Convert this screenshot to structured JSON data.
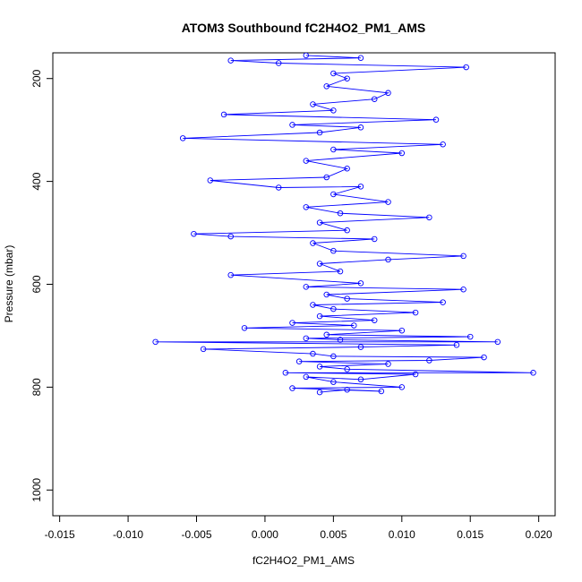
{
  "chart_data": {
    "type": "line",
    "title": "ATOM3 Southbound fC2H4O2_PM1_AMS",
    "xlabel": "fC2H4O2_PM1_AMS",
    "ylabel": "Pressure (mbar)",
    "xlim": [
      -0.0155,
      0.0212
    ],
    "ylim": [
      1050,
      150
    ],
    "y_reversed": true,
    "grid": false,
    "legend": "none",
    "x_ticks": [
      -0.015,
      -0.01,
      -0.005,
      0.0,
      0.005,
      0.01,
      0.015,
      0.02
    ],
    "x_tick_labels": [
      "-0.015",
      "-0.010",
      "-0.005",
      "0.000",
      "0.005",
      "0.010",
      "0.015",
      "0.020"
    ],
    "y_ticks": [
      200,
      400,
      600,
      800,
      1000
    ],
    "y_tick_labels": [
      "200",
      "400",
      "600",
      "800",
      "1000"
    ],
    "series": [
      {
        "color": "#0000ff",
        "marker": "open-circle",
        "points": [
          [
            0.004,
            810
          ],
          [
            0.006,
            805
          ],
          [
            0.0085,
            808
          ],
          [
            0.002,
            802
          ],
          [
            0.01,
            800
          ],
          [
            0.005,
            790
          ],
          [
            0.003,
            780
          ],
          [
            0.007,
            785
          ],
          [
            0.011,
            775
          ],
          [
            0.0015,
            772
          ],
          [
            0.0196,
            772
          ],
          [
            0.006,
            765
          ],
          [
            0.004,
            760
          ],
          [
            0.009,
            755
          ],
          [
            0.0025,
            750
          ],
          [
            0.012,
            748
          ],
          [
            0.016,
            742
          ],
          [
            0.005,
            740
          ],
          [
            0.0035,
            735
          ],
          [
            -0.0045,
            726
          ],
          [
            0.007,
            722
          ],
          [
            0.014,
            718
          ],
          [
            -0.008,
            712
          ],
          [
            0.017,
            712
          ],
          [
            0.0055,
            708
          ],
          [
            0.003,
            705
          ],
          [
            0.015,
            702
          ],
          [
            0.0045,
            698
          ],
          [
            0.01,
            690
          ],
          [
            -0.0015,
            685
          ],
          [
            0.0065,
            680
          ],
          [
            0.002,
            675
          ],
          [
            0.008,
            670
          ],
          [
            0.004,
            662
          ],
          [
            0.011,
            655
          ],
          [
            0.005,
            648
          ],
          [
            0.0035,
            640
          ],
          [
            0.013,
            635
          ],
          [
            0.006,
            628
          ],
          [
            0.0045,
            620
          ],
          [
            0.0145,
            610
          ],
          [
            0.003,
            605
          ],
          [
            0.007,
            598
          ],
          [
            -0.0025,
            582
          ],
          [
            0.0055,
            575
          ],
          [
            0.004,
            560
          ],
          [
            0.009,
            552
          ],
          [
            0.0145,
            545
          ],
          [
            0.005,
            535
          ],
          [
            0.0035,
            520
          ],
          [
            0.008,
            512
          ],
          [
            -0.0025,
            507
          ],
          [
            -0.0052,
            502
          ],
          [
            0.006,
            495
          ],
          [
            0.004,
            480
          ],
          [
            0.012,
            470
          ],
          [
            0.0055,
            462
          ],
          [
            0.003,
            450
          ],
          [
            0.009,
            440
          ],
          [
            0.005,
            425
          ],
          [
            0.007,
            410
          ],
          [
            0.001,
            412
          ],
          [
            -0.004,
            398
          ],
          [
            0.0045,
            392
          ],
          [
            0.006,
            375
          ],
          [
            0.003,
            360
          ],
          [
            0.01,
            345
          ],
          [
            0.005,
            338
          ],
          [
            0.013,
            328
          ],
          [
            -0.006,
            316
          ],
          [
            0.004,
            305
          ],
          [
            0.007,
            295
          ],
          [
            0.002,
            290
          ],
          [
            0.0125,
            280
          ],
          [
            -0.003,
            270
          ],
          [
            0.005,
            262
          ],
          [
            0.0035,
            250
          ],
          [
            0.008,
            240
          ],
          [
            0.009,
            228
          ],
          [
            0.0045,
            215
          ],
          [
            0.006,
            200
          ],
          [
            0.005,
            190
          ],
          [
            0.0147,
            178
          ],
          [
            0.001,
            170
          ],
          [
            -0.0025,
            165
          ],
          [
            0.007,
            160
          ],
          [
            0.003,
            155
          ]
        ]
      }
    ]
  }
}
